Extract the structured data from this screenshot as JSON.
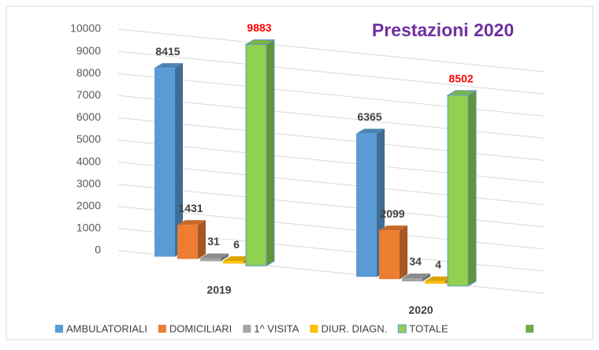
{
  "chart_data": {
    "type": "bar3d",
    "title": "Prestazioni 2020",
    "categories": [
      "2019",
      "2020"
    ],
    "series": [
      {
        "name": "AMBULATORIALI",
        "color": "#5b9bd5",
        "values": [
          8415,
          6365
        ]
      },
      {
        "name": "DOMICILIARI",
        "color": "#ed7d31",
        "values": [
          1431,
          2099
        ]
      },
      {
        "name": "1^ VISITA",
        "color": "#a5a5a5",
        "values": [
          31,
          34
        ]
      },
      {
        "name": "DIUR. DIAGN.",
        "color": "#ffc000",
        "values": [
          6,
          4
        ]
      },
      {
        "name": "TOTALE",
        "color": "#92d050",
        "values": [
          9883,
          8502
        ]
      }
    ],
    "ylim": [
      0,
      10000
    ],
    "yticks": [
      0,
      1000,
      2000,
      3000,
      4000,
      5000,
      6000,
      7000,
      8000,
      9000,
      10000
    ],
    "grid": true,
    "legend": "bottom"
  }
}
